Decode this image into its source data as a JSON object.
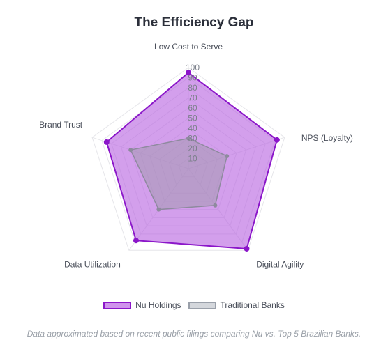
{
  "chart_data": {
    "type": "radar",
    "title": "The Efficiency Gap",
    "axes": [
      "Low Cost to Serve",
      "NPS (Loyalty)",
      "Digital Agility",
      "Data Utilization",
      "Brand Trust"
    ],
    "r_range": [
      0,
      100
    ],
    "ticks": [
      "10",
      "20",
      "30",
      "40",
      "50",
      "60",
      "70",
      "80",
      "90",
      "100"
    ],
    "grid": true,
    "legend_position": "bottom",
    "series": [
      {
        "name": "Nu Holdings",
        "values": [
          95,
          92,
          98,
          88,
          85
        ],
        "color": "#8b16c9",
        "fill": "#b65fe0"
      },
      {
        "name": "Traditional Banks",
        "values": [
          30,
          40,
          45,
          50,
          60
        ],
        "color": "#8e8a9e",
        "fill": "#9f9aaa"
      }
    ],
    "footnote": "Data approximated based on recent public filings comparing Nu vs. Top 5 Brazilian Banks."
  }
}
